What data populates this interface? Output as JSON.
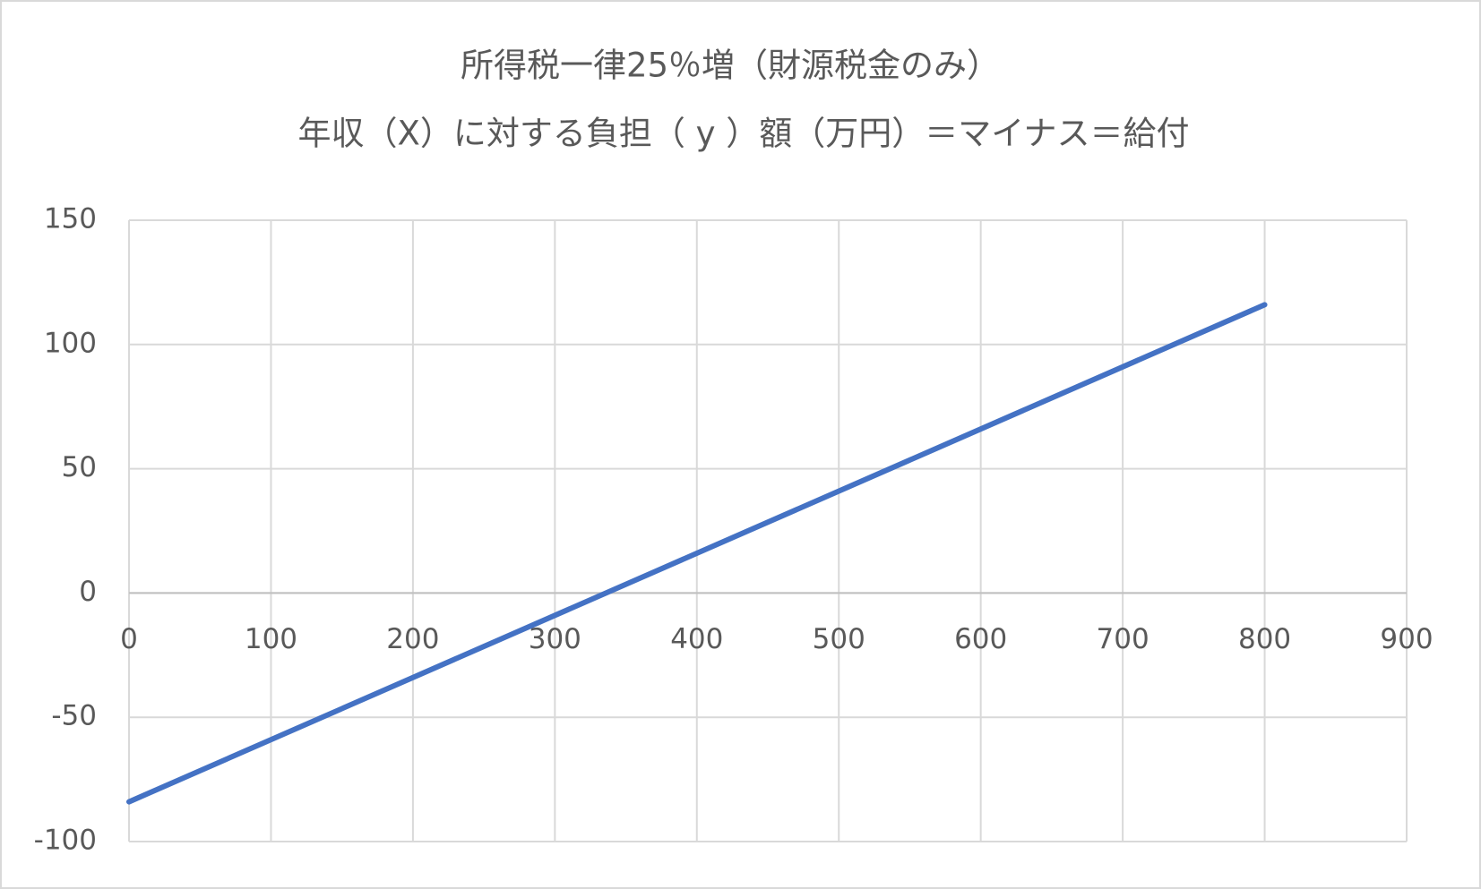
{
  "chart_data": {
    "type": "line",
    "title": [
      "所得税一律25％増（財源税金のみ）",
      "年収（X）に対する負担（ y ）額（万円）＝マイナス＝給付"
    ],
    "x": [
      0,
      800
    ],
    "series": [
      {
        "color": "#4472c4",
        "values": [
          -84,
          116
        ]
      }
    ],
    "xlim": [
      0,
      900
    ],
    "xticks": [
      0,
      100,
      200,
      300,
      400,
      500,
      600,
      700,
      800,
      900
    ],
    "ylim": [
      -100,
      150
    ],
    "yticks": [
      -100,
      -50,
      0,
      50,
      100,
      150
    ],
    "grid": true
  }
}
